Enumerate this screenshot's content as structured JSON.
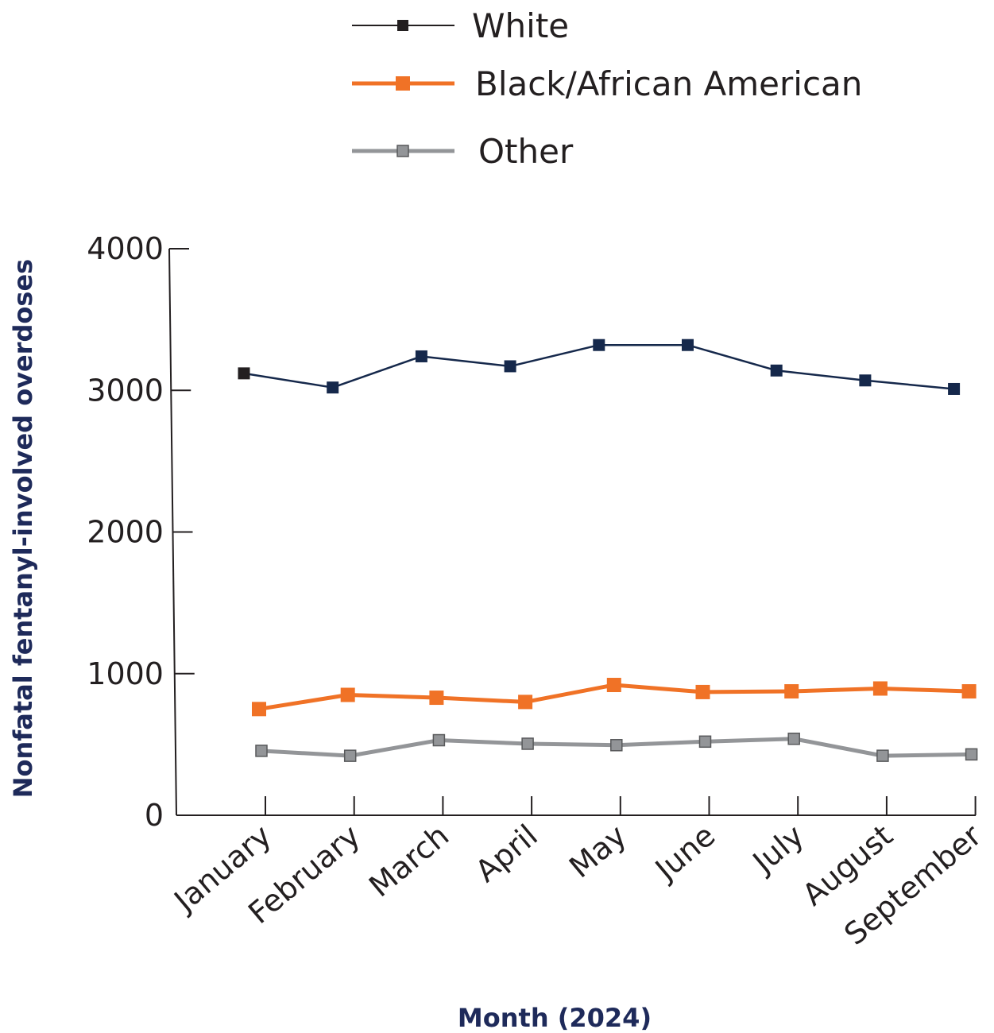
{
  "chart_data": {
    "type": "line",
    "title": "",
    "xlabel": "Month (2024)",
    "ylabel": "Nonfatal fentanyl-involved overdoses",
    "categories": [
      "January",
      "February",
      "March",
      "April",
      "May",
      "June",
      "July",
      "August",
      "September"
    ],
    "ylim": [
      0,
      4000
    ],
    "yticks": [
      0,
      1000,
      2000,
      3000,
      4000
    ],
    "grid": false,
    "legend_position": "top-center",
    "series": [
      {
        "name": "White",
        "color": "#15284b",
        "legend_color": "#231f20",
        "values": [
          3120,
          3020,
          3240,
          3170,
          3320,
          3320,
          3140,
          3070,
          3010
        ]
      },
      {
        "name": "Black/African American",
        "color": "#f07226",
        "legend_color": "#f07226",
        "values": [
          750,
          850,
          830,
          800,
          920,
          870,
          875,
          895,
          875
        ]
      },
      {
        "name": "Other",
        "color": "#939598",
        "legend_color": "#939598",
        "values": [
          455,
          420,
          530,
          505,
          495,
          520,
          540,
          420,
          430
        ]
      }
    ]
  }
}
